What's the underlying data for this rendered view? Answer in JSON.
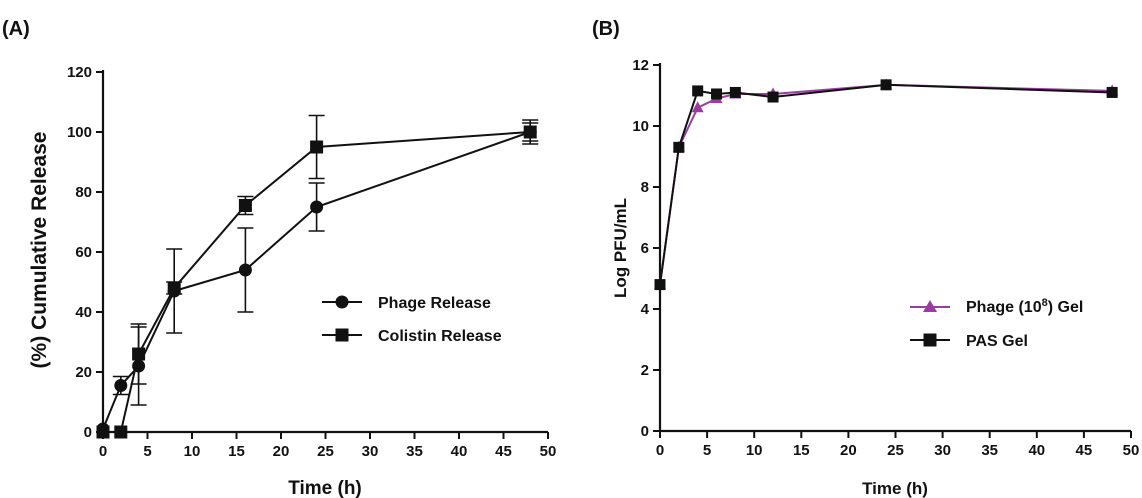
{
  "chart_data": [
    {
      "type": "line",
      "panel_label": "(A)",
      "xlabel": "Time (h)",
      "ylabel": "(%) Cumulative Release",
      "xlim": [
        0,
        50
      ],
      "ylim": [
        0,
        120
      ],
      "xticks": [
        "0",
        "5",
        "10",
        "15",
        "20",
        "25",
        "30",
        "35",
        "40",
        "45",
        "50"
      ],
      "yticks": [
        "0",
        "20",
        "40",
        "60",
        "80",
        "100",
        "120"
      ],
      "legend_position": "right-middle",
      "series": [
        {
          "name": "Phage Release",
          "marker": "circle",
          "color": "#111111",
          "x": [
            0,
            2,
            4,
            8,
            16,
            24,
            48
          ],
          "y": [
            1,
            15.5,
            22,
            47,
            54,
            75,
            100
          ],
          "err": [
            1,
            3,
            13,
            14,
            14,
            8,
            4
          ]
        },
        {
          "name": "Colistin Release",
          "marker": "square",
          "color": "#111111",
          "x": [
            0,
            2,
            4,
            8,
            16,
            24,
            48
          ],
          "y": [
            0,
            0,
            26,
            48,
            75.5,
            95,
            100
          ],
          "err": [
            0.5,
            0.5,
            10,
            2,
            3,
            10.5,
            3
          ]
        }
      ]
    },
    {
      "type": "line",
      "panel_label": "(B)",
      "xlabel": "Time (h)",
      "ylabel": "Log PFU/mL",
      "xlim": [
        0,
        50
      ],
      "ylim": [
        0,
        12
      ],
      "xticks": [
        "0",
        "5",
        "10",
        "15",
        "20",
        "25",
        "30",
        "35",
        "40",
        "45",
        "50"
      ],
      "yticks": [
        "0",
        "2",
        "4",
        "6",
        "8",
        "10",
        "12"
      ],
      "legend_position": "right-middle",
      "series": [
        {
          "name_main": "Phage (10",
          "name_sup": "8",
          "name_end": ") Gel",
          "marker": "triangle",
          "color": "#9b3da0",
          "x": [
            0,
            2,
            4,
            6,
            8,
            12,
            24,
            48
          ],
          "y": [
            4.8,
            9.3,
            10.6,
            10.9,
            11.05,
            11.05,
            11.35,
            11.15
          ]
        },
        {
          "name": "PAS Gel",
          "marker": "square",
          "color": "#111111",
          "x": [
            0,
            2,
            4,
            6,
            8,
            12,
            24,
            48
          ],
          "y": [
            4.8,
            9.3,
            11.15,
            11.05,
            11.1,
            10.95,
            11.35,
            11.1
          ]
        }
      ]
    }
  ]
}
